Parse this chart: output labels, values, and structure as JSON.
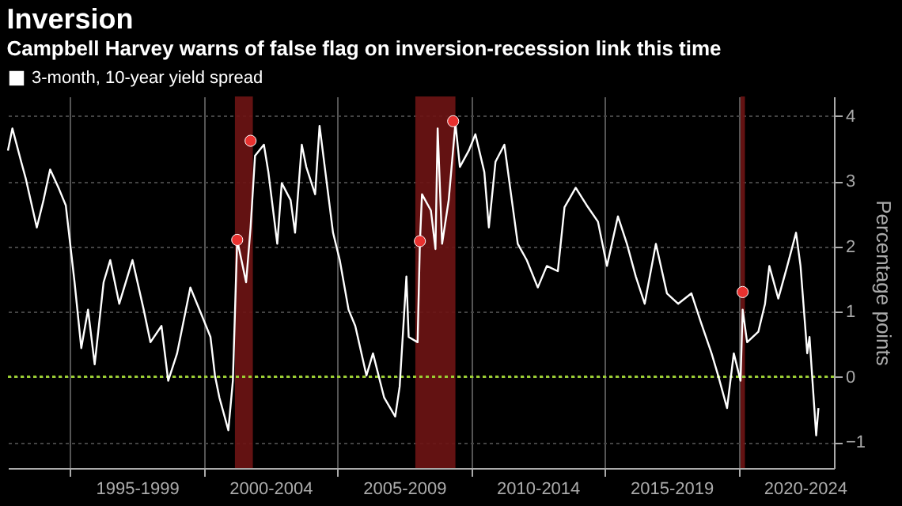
{
  "chart_data": {
    "type": "line",
    "title": "Inversion",
    "subtitle": "Campbell Harvey warns of false flag on inversion-recession link this time",
    "ylabel": "Percentage points",
    "series": [
      {
        "name": "3-month, 10-year yield spread",
        "color": "#ffffff",
        "x": [
          "1992-09",
          "1992-11",
          "1993-03",
          "1993-05",
          "1993-10",
          "1994-01",
          "1994-04",
          "1994-08",
          "1994-11",
          "1995-03",
          "1995-06",
          "1995-09",
          "1995-12",
          "1996-04",
          "1996-07",
          "1996-11",
          "1997-05",
          "1997-10",
          "1998-01",
          "1998-06",
          "1998-09",
          "1999-01",
          "1999-07",
          "1999-12",
          "2000-04",
          "2000-06",
          "2000-08",
          "2000-12",
          "2001-02",
          "2001-04",
          "2001-08",
          "2001-10",
          "2001-12",
          "2002-04",
          "2002-06",
          "2002-10",
          "2002-12",
          "2003-04",
          "2003-06",
          "2003-09",
          "2003-11",
          "2004-03",
          "2004-05",
          "2004-11",
          "2005-02",
          "2005-06",
          "2005-09",
          "2006-02",
          "2006-05",
          "2006-10",
          "2007-03",
          "2007-05",
          "2007-08",
          "2007-09",
          "2008-01",
          "2008-02",
          "2008-03",
          "2008-07",
          "2008-09",
          "2008-10",
          "2008-12",
          "2009-03",
          "2009-06",
          "2009-08",
          "2009-12",
          "2010-03",
          "2010-07",
          "2010-09",
          "2010-12",
          "2011-04",
          "2011-07",
          "2011-10",
          "2012-02",
          "2012-07",
          "2012-11",
          "2013-04",
          "2013-07",
          "2013-12",
          "2014-05",
          "2014-10",
          "2015-02",
          "2015-07",
          "2015-11",
          "2016-03",
          "2016-07",
          "2016-12",
          "2017-05",
          "2017-10",
          "2018-04",
          "2018-08",
          "2019-01",
          "2019-04",
          "2019-08",
          "2019-11",
          "2020-02",
          "2020-03",
          "2020-05",
          "2020-10",
          "2021-01",
          "2021-03",
          "2021-07",
          "2021-11",
          "2022-03",
          "2022-05",
          "2022-08",
          "2022-09",
          "2022-10",
          "2022-12",
          "2023-01"
        ],
        "values": [
          3.47,
          3.81,
          3.3,
          3.05,
          2.29,
          2.71,
          3.18,
          2.88,
          2.63,
          1.45,
          0.44,
          1.03,
          0.19,
          1.45,
          1.79,
          1.12,
          1.79,
          1.03,
          0.53,
          0.78,
          -0.06,
          0.36,
          1.37,
          0.95,
          0.61,
          0.02,
          -0.32,
          -0.82,
          -0.06,
          2.1,
          1.45,
          2.29,
          3.39,
          3.56,
          3.14,
          2.04,
          2.97,
          2.71,
          2.21,
          3.56,
          3.22,
          2.8,
          3.85,
          2.21,
          1.79,
          1.03,
          0.78,
          0.02,
          0.36,
          -0.32,
          -0.61,
          -0.15,
          1.54,
          0.61,
          0.53,
          2.04,
          2.8,
          2.55,
          1.96,
          3.81,
          2.04,
          2.71,
          3.89,
          3.22,
          3.47,
          3.72,
          3.14,
          2.29,
          3.3,
          3.56,
          2.8,
          2.04,
          1.79,
          1.37,
          1.7,
          1.62,
          2.6,
          2.9,
          2.63,
          2.38,
          1.7,
          2.46,
          2.04,
          1.54,
          1.12,
          2.04,
          1.28,
          1.12,
          1.28,
          0.86,
          0.36,
          0.02,
          -0.48,
          0.36,
          -0.06,
          1.03,
          0.53,
          0.69,
          1.12,
          1.7,
          1.2,
          1.7,
          2.21,
          1.7,
          0.36,
          0.61,
          0.11,
          -0.9,
          -0.48
        ]
      },
      {
        "type": "scatter",
        "marker": "circle",
        "color": "#e8312f",
        "x": [
          "2001-04",
          "2001-10",
          "2008-02",
          "2009-05",
          "2020-03"
        ],
        "values": [
          2.1,
          3.62,
          2.08,
          3.92,
          1.3
        ]
      }
    ],
    "xlim": [
      "1992-09",
      "2023-08"
    ],
    "ylim": [
      -1.4,
      4.3
    ],
    "yticks": [
      -1,
      0,
      1,
      2,
      3,
      4
    ],
    "xticks": [
      {
        "value": "1995",
        "label": null
      },
      {
        "value": "1997-07",
        "label": "1995-1999"
      },
      {
        "value": "2000",
        "label": null
      },
      {
        "value": "2002-07",
        "label": "2000-2004"
      },
      {
        "value": "2005",
        "label": null
      },
      {
        "value": "2007-07",
        "label": "2005-2009"
      },
      {
        "value": "2010",
        "label": null
      },
      {
        "value": "2012-07",
        "label": "2010-2014"
      },
      {
        "value": "2015",
        "label": null
      },
      {
        "value": "2017-07",
        "label": "2015-2019"
      },
      {
        "value": "2020",
        "label": null
      },
      {
        "value": "2022-07",
        "label": "2020-2024"
      }
    ],
    "bands": [
      {
        "axis": "x",
        "from": "2001-03",
        "to": "2001-11",
        "color": "#6e1414"
      },
      {
        "axis": "x",
        "from": "2007-12",
        "to": "2009-06",
        "color": "#6e1414"
      },
      {
        "axis": "x",
        "from": "2020-02",
        "to": "2020-04",
        "color": "#6e1414"
      }
    ],
    "ref_lines": [
      {
        "axis": "y",
        "value": 0,
        "color": "#9acd32",
        "line_style": "dotted"
      }
    ],
    "grid": true,
    "legend": "top left",
    "line_style": "solid"
  }
}
